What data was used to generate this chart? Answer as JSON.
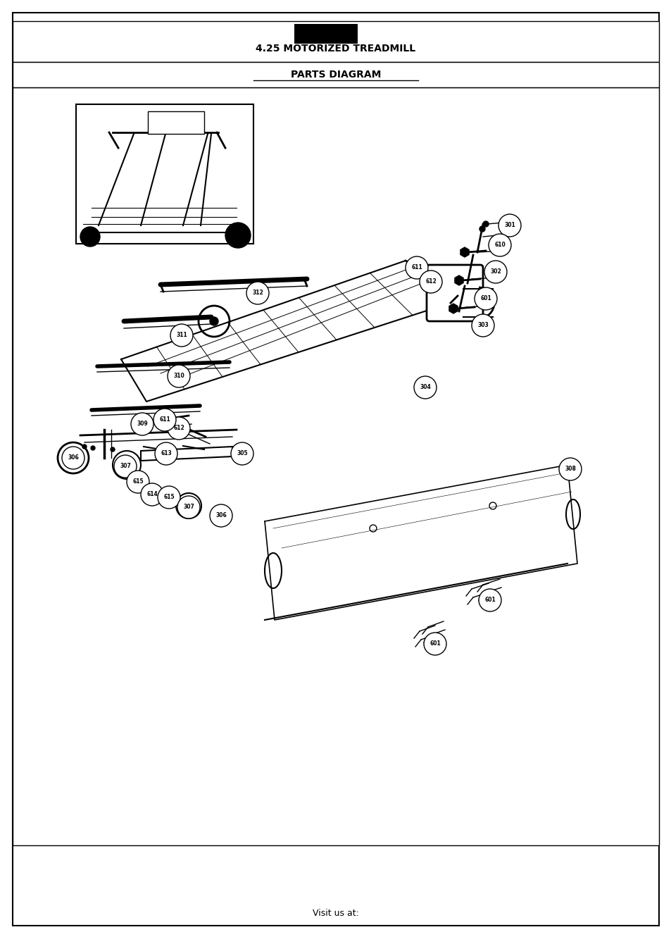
{
  "title1": "4.25 MOTORIZED TREADMILL",
  "title2": "PARTS DIAGRAM",
  "footer": "Visit us at:",
  "bg_color": "#ffffff",
  "border_color": "#000000"
}
